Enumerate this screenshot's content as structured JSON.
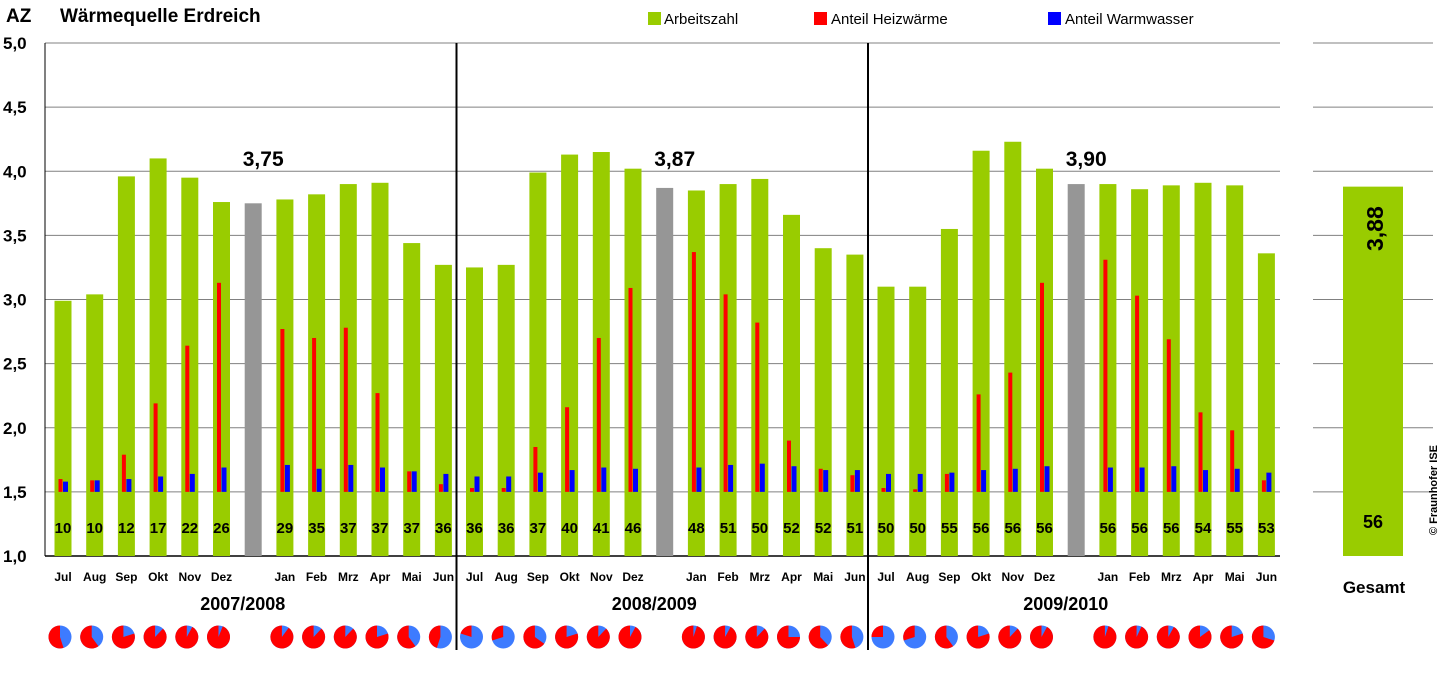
{
  "chart_data": {
    "type": "bar",
    "title_prefix": "AZ",
    "title": "Wärmequelle Erdreich",
    "ylabel": "AZ",
    "ylim": [
      1.0,
      5.0
    ],
    "y_ticks": [
      "1,0",
      "1,5",
      "2,0",
      "2,5",
      "3,0",
      "3,5",
      "4,0",
      "4,5",
      "5,0"
    ],
    "grid": true,
    "legend_position": "top",
    "legend": [
      {
        "label": "Arbeitszahl",
        "color": "#99cc00"
      },
      {
        "label": "Anteil Heizwärme",
        "color": "#ff0000"
      },
      {
        "label": "Anteil Warmwasser",
        "color": "#0000ff"
      }
    ],
    "annual_color": "#969696",
    "periods": [
      {
        "label": "2007/2008",
        "annual_label": "3,75",
        "annual_value": 3.75,
        "months": [
          "Jul",
          "Aug",
          "Sep",
          "Okt",
          "Nov",
          "Dez",
          "Jan",
          "Feb",
          "Mrz",
          "Apr",
          "Mai",
          "Jun"
        ],
        "arbeitszahl": [
          2.99,
          3.04,
          3.96,
          4.1,
          3.95,
          3.76,
          3.78,
          3.82,
          3.9,
          3.91,
          3.44,
          3.27
        ],
        "heizwaerme": [
          1.6,
          1.59,
          1.79,
          2.19,
          2.64,
          3.13,
          2.77,
          2.7,
          2.78,
          2.27,
          1.66,
          1.56
        ],
        "warmwasser": [
          1.58,
          1.59,
          1.6,
          1.62,
          1.64,
          1.69,
          1.71,
          1.68,
          1.71,
          1.69,
          1.66,
          1.64
        ],
        "counts": [
          "10",
          "10",
          "12",
          "17",
          "22",
          "26",
          "29",
          "35",
          "37",
          "37",
          "37",
          "36"
        ]
      },
      {
        "label": "2008/2009",
        "annual_label": "3,87",
        "annual_value": 3.87,
        "months": [
          "Jul",
          "Aug",
          "Sep",
          "Okt",
          "Nov",
          "Dez",
          "Jan",
          "Feb",
          "Mrz",
          "Apr",
          "Mai",
          "Jun"
        ],
        "arbeitszahl": [
          3.25,
          3.27,
          3.99,
          4.13,
          4.15,
          4.02,
          3.85,
          3.9,
          3.94,
          3.66,
          3.4,
          3.35
        ],
        "heizwaerme": [
          1.53,
          1.53,
          1.85,
          2.16,
          2.7,
          3.09,
          3.37,
          3.04,
          2.82,
          1.9,
          1.68,
          1.63
        ],
        "warmwasser": [
          1.62,
          1.62,
          1.65,
          1.67,
          1.69,
          1.68,
          1.69,
          1.71,
          1.72,
          1.7,
          1.67,
          1.67
        ],
        "counts": [
          "36",
          "36",
          "37",
          "40",
          "41",
          "46",
          "48",
          "51",
          "50",
          "52",
          "52",
          "51"
        ]
      },
      {
        "label": "2009/2010",
        "annual_label": "3,90",
        "annual_value": 3.9,
        "months": [
          "Jul",
          "Aug",
          "Sep",
          "Okt",
          "Nov",
          "Dez",
          "Jan",
          "Feb",
          "Mrz",
          "Apr",
          "Mai",
          "Jun"
        ],
        "arbeitszahl": [
          3.1,
          3.1,
          3.55,
          4.16,
          4.23,
          4.02,
          3.9,
          3.86,
          3.89,
          3.91,
          3.89,
          3.36
        ],
        "heizwaerme": [
          1.53,
          1.52,
          1.64,
          2.26,
          2.43,
          3.13,
          3.31,
          3.03,
          2.69,
          2.12,
          1.98,
          1.59
        ],
        "warmwasser": [
          1.64,
          1.64,
          1.65,
          1.67,
          1.68,
          1.7,
          1.69,
          1.69,
          1.7,
          1.67,
          1.68,
          1.65
        ],
        "counts": [
          "50",
          "50",
          "55",
          "56",
          "56",
          "56",
          "56",
          "56",
          "56",
          "54",
          "55",
          "53"
        ]
      }
    ],
    "pie_share_heizwaerme": [
      [
        0.55,
        0.6,
        0.8,
        0.88,
        0.92,
        0.94,
        0.9,
        0.88,
        0.88,
        0.8,
        0.6,
        0.45
      ],
      [
        0.2,
        0.3,
        0.65,
        0.8,
        0.88,
        0.92,
        0.95,
        0.92,
        0.88,
        0.75,
        0.62,
        0.55
      ],
      [
        0.25,
        0.3,
        0.6,
        0.8,
        0.88,
        0.92,
        0.95,
        0.93,
        0.92,
        0.85,
        0.8,
        0.7
      ]
    ],
    "pie_colors": {
      "heizwaerme": "#ff0000",
      "warmwasser": "#3d7bff"
    },
    "total": {
      "label": "Gesamt",
      "value": 3.88,
      "value_label": "3,88",
      "count": "56"
    },
    "copyright": "© Fraunhofer ISE"
  }
}
